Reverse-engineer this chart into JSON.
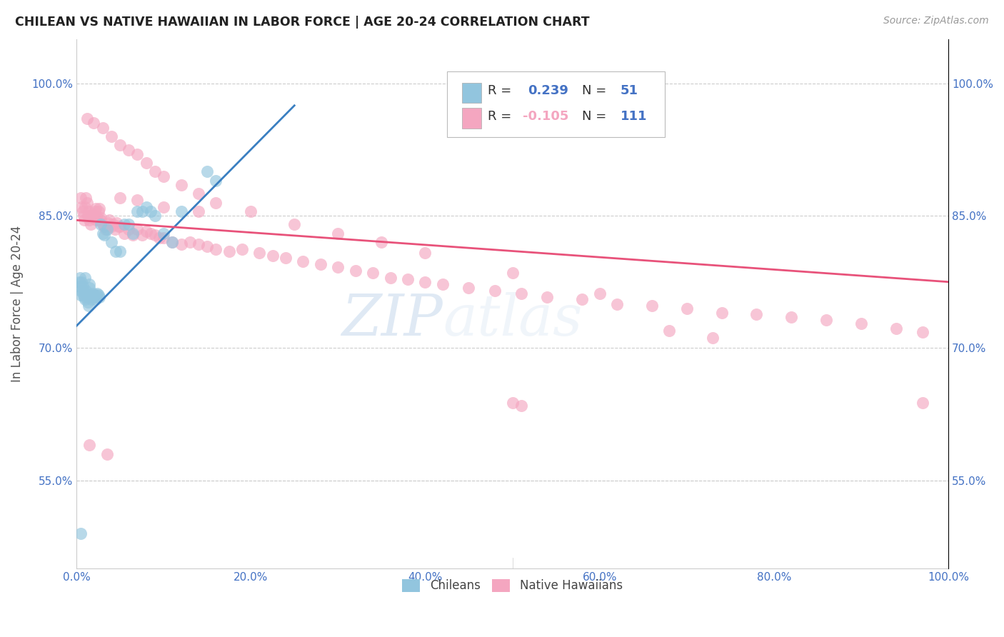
{
  "title": "CHILEAN VS NATIVE HAWAIIAN IN LABOR FORCE | AGE 20-24 CORRELATION CHART",
  "source": "Source: ZipAtlas.com",
  "ylabel": "In Labor Force | Age 20-24",
  "xlim": [
    0.0,
    1.0
  ],
  "ylim": [
    0.45,
    1.05
  ],
  "xticks": [
    0.0,
    0.2,
    0.4,
    0.6,
    0.8,
    1.0
  ],
  "yticks": [
    0.55,
    0.7,
    0.85,
    1.0
  ],
  "xtick_labels": [
    "0.0%",
    "20.0%",
    "40.0%",
    "60.0%",
    "80.0%",
    "100.0%"
  ],
  "ytick_labels": [
    "55.0%",
    "70.0%",
    "85.0%",
    "100.0%"
  ],
  "R_chilean": 0.239,
  "N_chilean": 51,
  "R_hawaiian": -0.105,
  "N_hawaiian": 111,
  "blue_color": "#92c5de",
  "pink_color": "#f4a6c0",
  "trendline_blue": "#3a7fc1",
  "trendline_pink": "#e8527a",
  "blue_scatter_x": [
    0.003,
    0.004,
    0.004,
    0.005,
    0.005,
    0.006,
    0.007,
    0.007,
    0.008,
    0.009,
    0.01,
    0.01,
    0.011,
    0.012,
    0.013,
    0.013,
    0.014,
    0.015,
    0.015,
    0.016,
    0.017,
    0.018,
    0.019,
    0.02,
    0.021,
    0.022,
    0.023,
    0.024,
    0.025,
    0.026,
    0.028,
    0.03,
    0.032,
    0.035,
    0.04,
    0.045,
    0.05,
    0.055,
    0.06,
    0.065,
    0.07,
    0.075,
    0.08,
    0.085,
    0.09,
    0.1,
    0.11,
    0.12,
    0.15,
    0.16,
    0.005
  ],
  "blue_scatter_y": [
    0.775,
    0.77,
    0.78,
    0.76,
    0.765,
    0.775,
    0.77,
    0.765,
    0.76,
    0.758,
    0.755,
    0.78,
    0.765,
    0.76,
    0.758,
    0.752,
    0.748,
    0.772,
    0.768,
    0.76,
    0.755,
    0.758,
    0.762,
    0.76,
    0.758,
    0.755,
    0.76,
    0.762,
    0.76,
    0.758,
    0.84,
    0.83,
    0.828,
    0.835,
    0.82,
    0.81,
    0.81,
    0.84,
    0.84,
    0.83,
    0.855,
    0.855,
    0.86,
    0.855,
    0.85,
    0.83,
    0.82,
    0.855,
    0.9,
    0.89,
    0.49
  ],
  "pink_scatter_x": [
    0.005,
    0.006,
    0.007,
    0.008,
    0.009,
    0.01,
    0.011,
    0.012,
    0.013,
    0.014,
    0.015,
    0.016,
    0.017,
    0.018,
    0.019,
    0.02,
    0.021,
    0.022,
    0.023,
    0.024,
    0.025,
    0.026,
    0.027,
    0.028,
    0.03,
    0.032,
    0.034,
    0.036,
    0.038,
    0.04,
    0.042,
    0.044,
    0.046,
    0.048,
    0.05,
    0.055,
    0.06,
    0.065,
    0.07,
    0.075,
    0.08,
    0.085,
    0.09,
    0.095,
    0.1,
    0.11,
    0.12,
    0.13,
    0.14,
    0.15,
    0.16,
    0.175,
    0.19,
    0.21,
    0.225,
    0.24,
    0.26,
    0.28,
    0.3,
    0.32,
    0.34,
    0.36,
    0.38,
    0.4,
    0.42,
    0.45,
    0.48,
    0.51,
    0.54,
    0.58,
    0.62,
    0.66,
    0.7,
    0.74,
    0.78,
    0.82,
    0.86,
    0.9,
    0.94,
    0.97,
    0.012,
    0.02,
    0.03,
    0.04,
    0.05,
    0.06,
    0.07,
    0.08,
    0.09,
    0.1,
    0.12,
    0.14,
    0.16,
    0.2,
    0.25,
    0.3,
    0.35,
    0.4,
    0.5,
    0.6,
    0.68,
    0.73,
    0.05,
    0.07,
    0.1,
    0.14,
    0.5,
    0.51,
    0.97,
    0.015,
    0.035
  ],
  "pink_scatter_y": [
    0.87,
    0.86,
    0.855,
    0.85,
    0.845,
    0.86,
    0.87,
    0.865,
    0.85,
    0.855,
    0.845,
    0.84,
    0.848,
    0.852,
    0.848,
    0.85,
    0.855,
    0.858,
    0.845,
    0.848,
    0.855,
    0.858,
    0.845,
    0.848,
    0.84,
    0.838,
    0.835,
    0.842,
    0.845,
    0.838,
    0.84,
    0.835,
    0.842,
    0.838,
    0.838,
    0.83,
    0.835,
    0.828,
    0.835,
    0.828,
    0.832,
    0.83,
    0.828,
    0.825,
    0.825,
    0.82,
    0.818,
    0.82,
    0.818,
    0.815,
    0.812,
    0.81,
    0.812,
    0.808,
    0.805,
    0.802,
    0.798,
    0.795,
    0.792,
    0.788,
    0.785,
    0.78,
    0.778,
    0.775,
    0.772,
    0.768,
    0.765,
    0.762,
    0.758,
    0.755,
    0.75,
    0.748,
    0.745,
    0.74,
    0.738,
    0.735,
    0.732,
    0.728,
    0.722,
    0.718,
    0.96,
    0.955,
    0.95,
    0.94,
    0.93,
    0.925,
    0.92,
    0.91,
    0.9,
    0.895,
    0.885,
    0.875,
    0.865,
    0.855,
    0.84,
    0.83,
    0.82,
    0.808,
    0.785,
    0.762,
    0.72,
    0.712,
    0.87,
    0.868,
    0.86,
    0.855,
    0.638,
    0.635,
    0.638,
    0.59,
    0.58
  ],
  "watermark_zip": "ZIP",
  "watermark_atlas": "atlas",
  "background_color": "#ffffff",
  "grid_color": "#cccccc",
  "tick_color": "#4472c4",
  "label_color": "#555555"
}
